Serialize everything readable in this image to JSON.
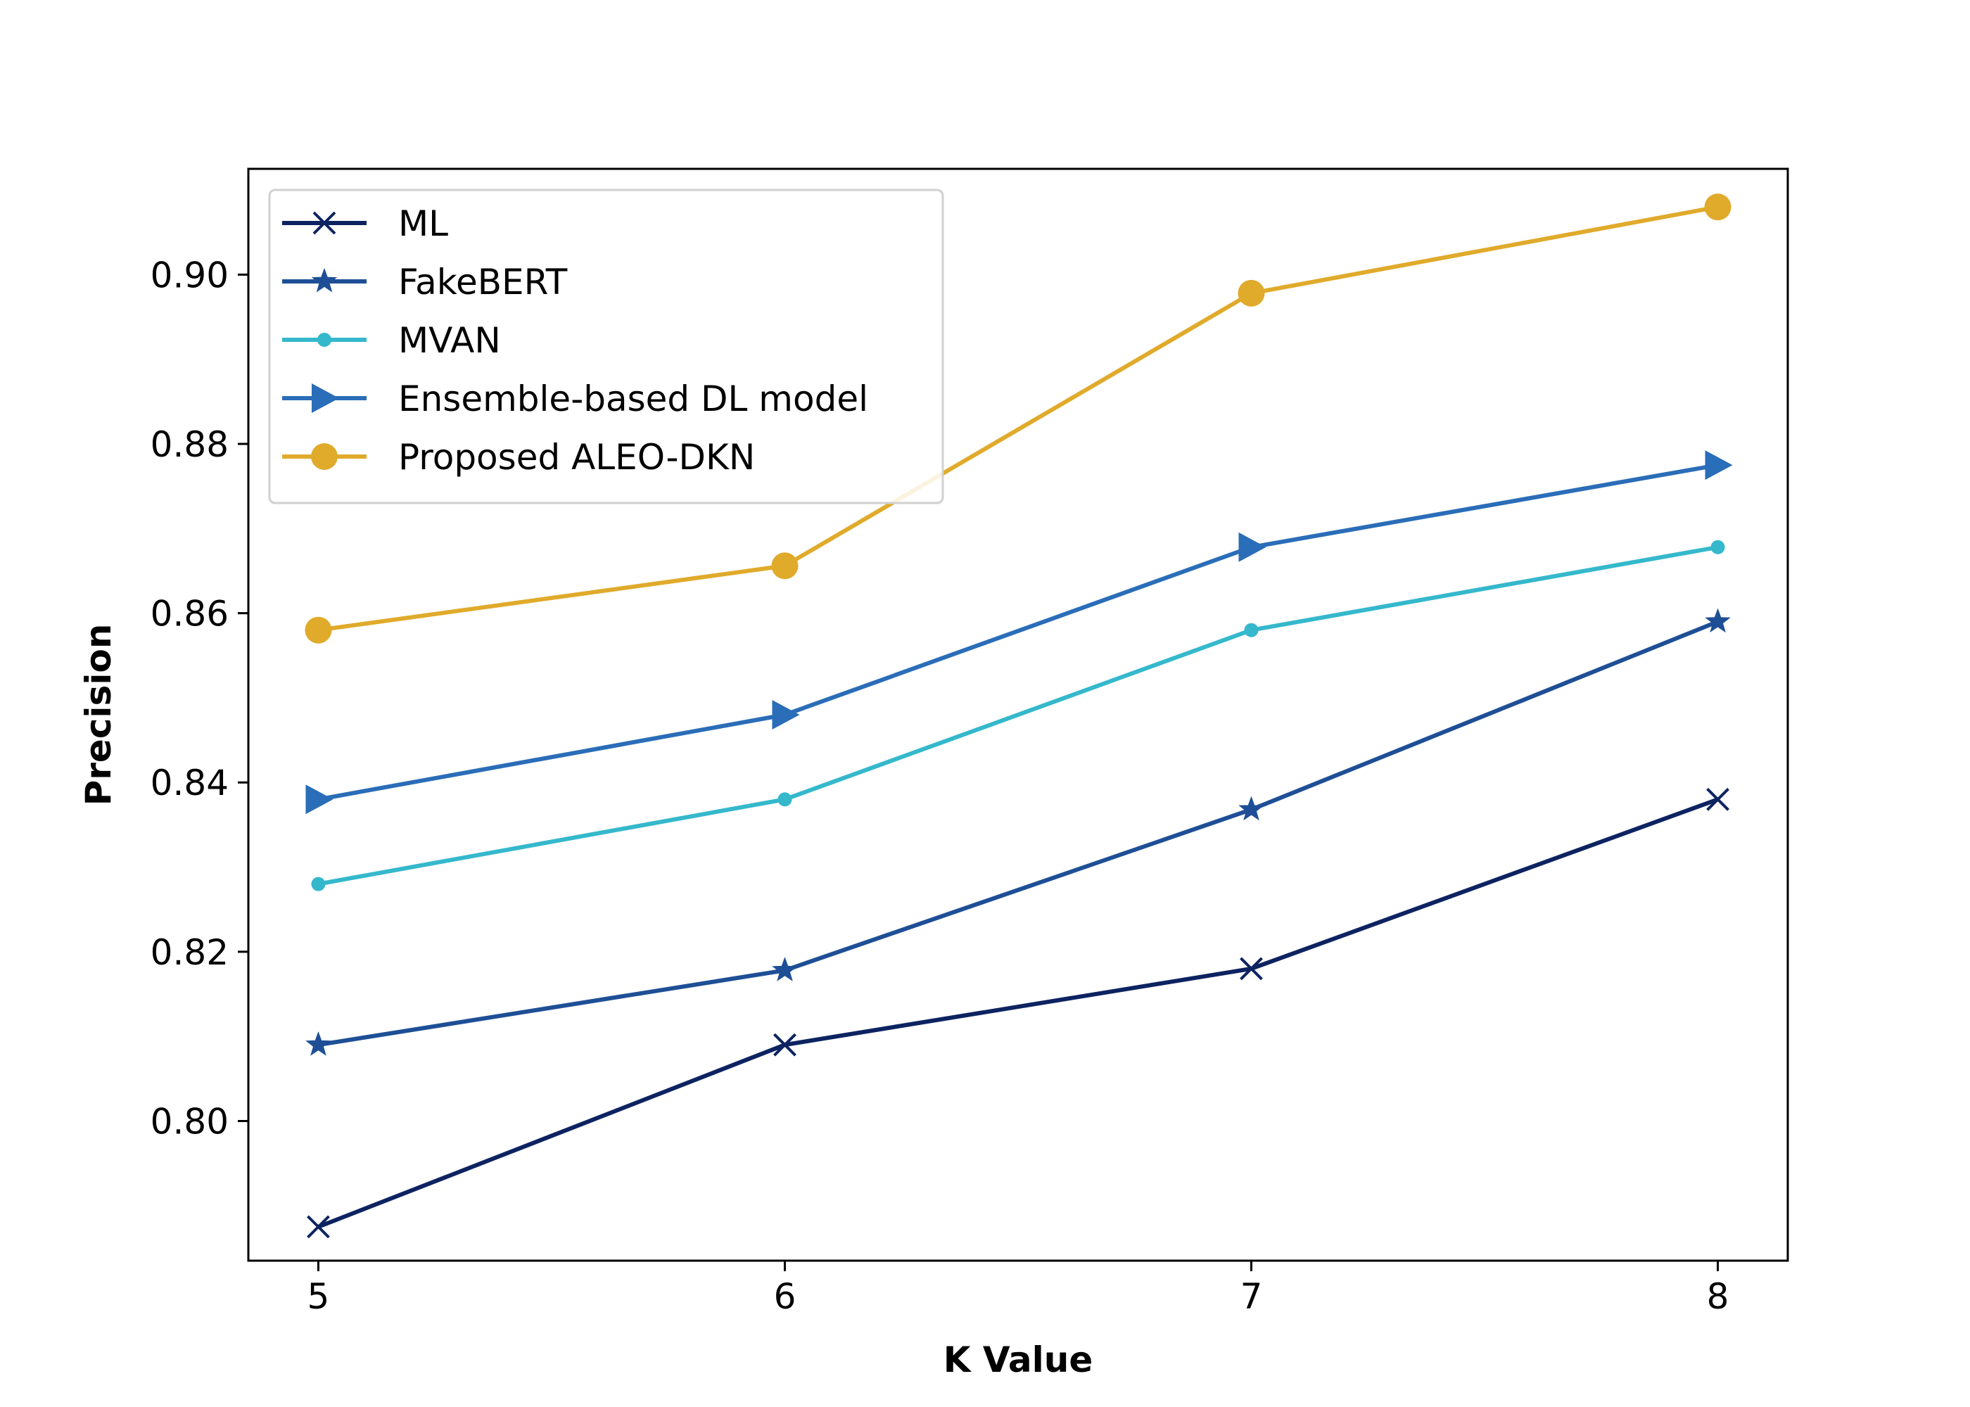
{
  "chart_data": {
    "type": "line",
    "title": "",
    "xlabel": "K Value",
    "ylabel": "Precision",
    "x": [
      5,
      6,
      7,
      8
    ],
    "xticks": [
      "5",
      "6",
      "7",
      "8"
    ],
    "yticks": [
      "0.80",
      "0.82",
      "0.84",
      "0.86",
      "0.88",
      "0.90"
    ],
    "ytick_values": [
      0.8,
      0.82,
      0.84,
      0.86,
      0.88,
      0.9
    ],
    "xlim": [
      4.85,
      8.15
    ],
    "ylim": [
      0.7835,
      0.9125
    ],
    "grid": false,
    "legend_position": "upper-left",
    "series": [
      {
        "name": "ML",
        "values": [
          0.7875,
          0.809,
          0.818,
          0.838
        ],
        "color": "#0d2361",
        "marker": "x"
      },
      {
        "name": "FakeBERT",
        "values": [
          0.809,
          0.8178,
          0.8368,
          0.859
        ],
        "color": "#1e4f96",
        "marker": "star"
      },
      {
        "name": "MVAN",
        "values": [
          0.828,
          0.838,
          0.858,
          0.8678
        ],
        "color": "#35b8cc",
        "marker": "point"
      },
      {
        "name": "Ensemble-based DL model",
        "values": [
          0.838,
          0.848,
          0.8678,
          0.8775
        ],
        "color": "#2a6db8",
        "marker": "triangle-right"
      },
      {
        "name": "Proposed ALEO-DKN",
        "values": [
          0.858,
          0.8656,
          0.8978,
          0.908
        ],
        "color": "#e0aa2b",
        "marker": "circle"
      }
    ]
  }
}
